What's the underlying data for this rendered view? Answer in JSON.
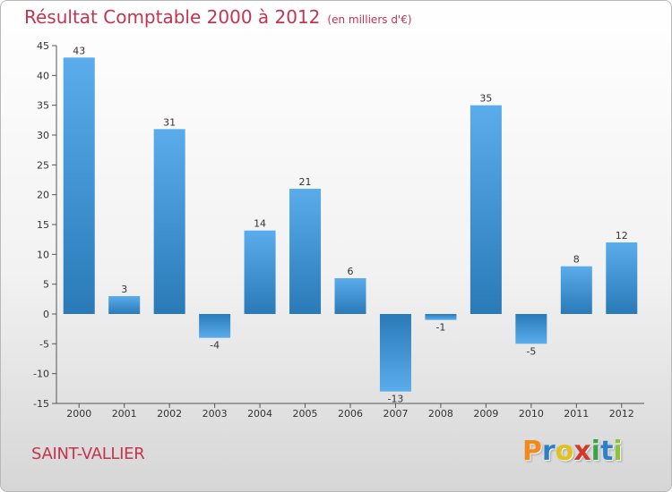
{
  "title": "Résultat Comptable 2000 à 2012",
  "subtitle": "(en milliers d'€)",
  "city": "SAINT-VALLIER",
  "logo": {
    "letters": [
      "P",
      "r",
      "o",
      "x",
      "i",
      "t",
      "i"
    ],
    "colors": [
      "#f08a1c",
      "#2f7fc8",
      "#e0c21a",
      "#d13a2a",
      "#3aa14a",
      "#2f7fc8",
      "#8ac43f"
    ]
  },
  "chart_data": {
    "type": "bar",
    "title": "Résultat Comptable 2000 à 2012",
    "subtitle": "(en milliers d'€)",
    "xlabel": "",
    "ylabel": "",
    "categories": [
      "2000",
      "2001",
      "2002",
      "2003",
      "2004",
      "2005",
      "2006",
      "2007",
      "2008",
      "2009",
      "2010",
      "2011",
      "2012"
    ],
    "values": [
      43,
      3,
      31,
      -4,
      14,
      21,
      6,
      -13,
      -1,
      35,
      -5,
      8,
      12
    ],
    "ylim": [
      -15,
      45
    ],
    "yticks": [
      -15,
      -10,
      -5,
      0,
      5,
      10,
      15,
      20,
      25,
      30,
      35,
      40,
      45
    ],
    "grid": false,
    "legend": "none",
    "colors": {
      "bar_top": "#5aaceb",
      "bar_bottom": "#2a7ab8",
      "text": "#333333",
      "title": "#c4344e"
    }
  }
}
